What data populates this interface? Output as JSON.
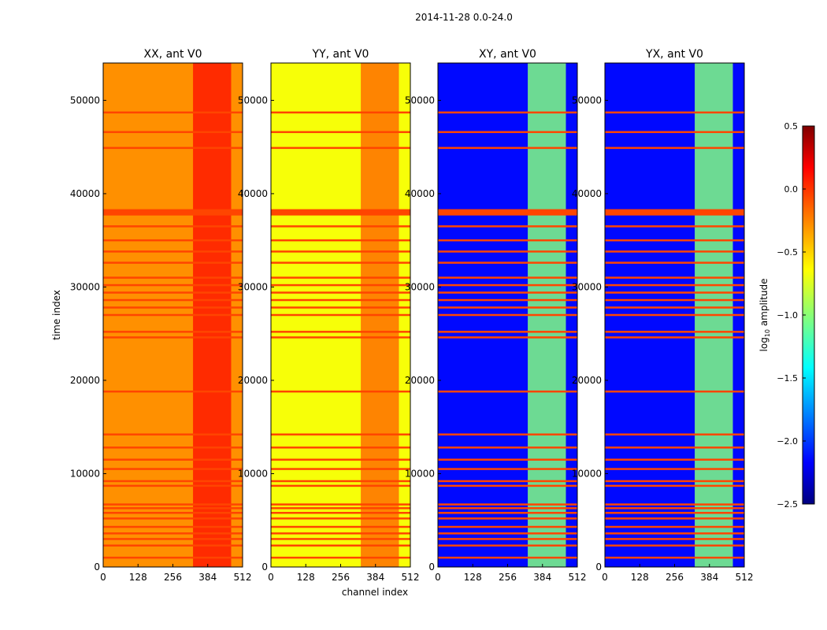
{
  "chart_data": {
    "type": "heatmap",
    "suptitle": "2014-11-28 0.0-24.0",
    "xlabel": "channel index",
    "ylabel": "time index",
    "x_ticks": [
      0,
      128,
      256,
      384,
      512
    ],
    "y_ticks": [
      0,
      10000,
      20000,
      30000,
      40000,
      50000
    ],
    "xlim": [
      0,
      512
    ],
    "ylim": [
      0,
      54000
    ],
    "colorbar": {
      "label": "log10 amplitude",
      "label_base": "log",
      "label_sub": "10",
      "label_rest": " amplitude",
      "range": [
        -2.5,
        0.5
      ],
      "ticks": [
        "0.5",
        "0.0",
        "−0.5",
        "−1.0",
        "−1.5",
        "−2.0",
        "−2.5"
      ],
      "colormap": "jet"
    },
    "panels": [
      {
        "title": "XX, ant V0",
        "base_level": -0.3,
        "band_level": 0.05
      },
      {
        "title": "YY, ant V0",
        "base_level": -0.65,
        "band_level": -0.2
      },
      {
        "title": "XY, ant V0",
        "base_level": -2.1,
        "band_level": -1.0
      },
      {
        "title": "YX, ant V0",
        "base_level": -2.1,
        "band_level": -1.0
      }
    ],
    "flagged_rows": [
      38000,
      36500,
      35000,
      33800,
      32600,
      31000,
      30200,
      29400,
      28600,
      27800,
      27000,
      25200,
      24600,
      18800,
      14200,
      12800,
      11500,
      10500,
      9200,
      8700,
      6700,
      6300,
      5800,
      5200,
      4300,
      3600,
      3000,
      2300,
      1000,
      44900,
      46600,
      48700
    ]
  }
}
